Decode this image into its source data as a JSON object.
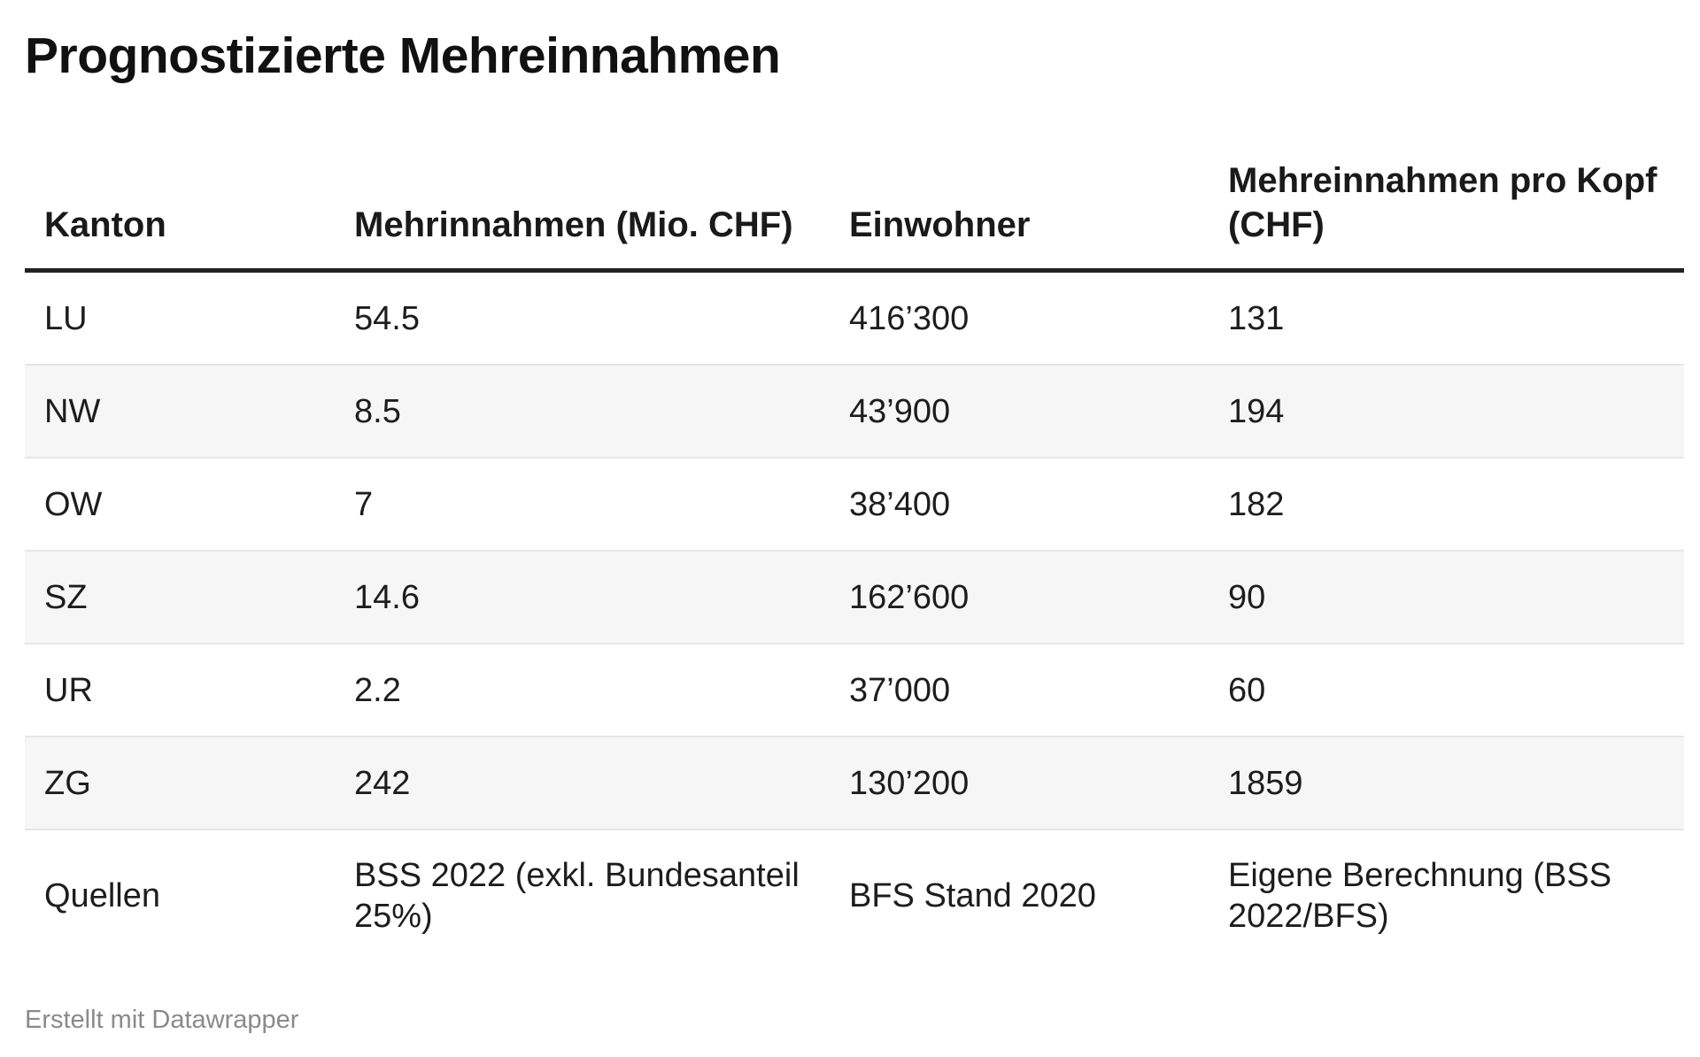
{
  "title": "Prognostizierte Mehreinnahmen",
  "footer": "Erstellt mit Datawrapper",
  "chart_data": {
    "type": "table",
    "title": "Prognostizierte Mehreinnahmen",
    "columns": [
      "Kanton",
      "Mehrinnahmen (Mio. CHF)",
      "Einwohner",
      "Mehreinnahmen pro Kopf (CHF)"
    ],
    "rows": [
      [
        "LU",
        "54.5",
        "416’300",
        "131"
      ],
      [
        "NW",
        "8.5",
        "43’900",
        "194"
      ],
      [
        "OW",
        "7",
        "38’400",
        "182"
      ],
      [
        "SZ",
        "14.6",
        "162’600",
        "90"
      ],
      [
        "UR",
        "2.2",
        "37’000",
        "60"
      ],
      [
        "ZG",
        "242",
        "130’200",
        "1859"
      ],
      [
        "Quellen",
        "BSS 2022 (exkl. Bundesanteil 25%)",
        "BFS Stand 2020",
        "Eigene Berechnung (BSS 2022/BFS)"
      ]
    ]
  }
}
